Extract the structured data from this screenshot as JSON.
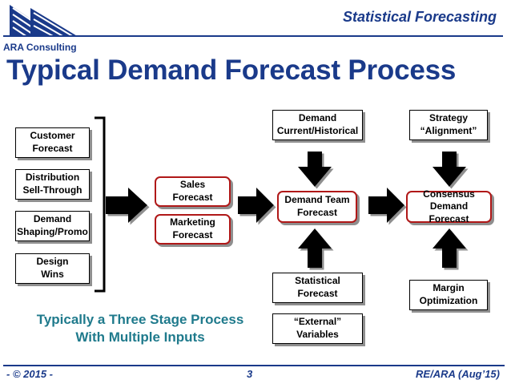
{
  "header": {
    "company": "ARA Consulting",
    "title": "Statistical Forecasting"
  },
  "main_title": "Typical Demand Forecast Process",
  "inputs": [
    {
      "label": "Customer\nForecast"
    },
    {
      "label": "Distribution\nSell-Through"
    },
    {
      "label": "Demand\nShaping/Promo"
    },
    {
      "label": "Design\nWins"
    }
  ],
  "sales": {
    "label": "Sales\nForecast"
  },
  "marketing": {
    "label": "Marketing\nForecast"
  },
  "demand_team": {
    "label": "Demand Team\nForecast"
  },
  "demand_history": {
    "label": "Demand\nCurrent/Historical"
  },
  "statistical": {
    "label": "Statistical\nForecast"
  },
  "external": {
    "label": "“External”\nVariables"
  },
  "consensus": {
    "label": "Consensus\nDemand Forecast"
  },
  "strategy": {
    "label": "Strategy\n“Alignment”"
  },
  "margin": {
    "label": "Margin\nOptimization"
  },
  "subtitle": {
    "line1": "Typically a Three Stage Process",
    "line2": "With Multiple Inputs"
  },
  "footer": {
    "left": "- © 2015 -",
    "page": "3",
    "right": "RE/ARA (Aug’15)"
  }
}
